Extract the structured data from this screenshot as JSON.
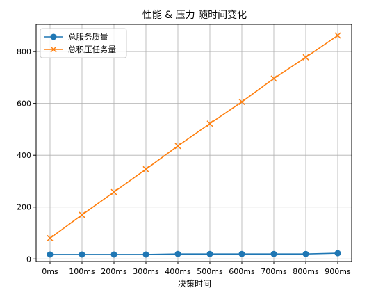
{
  "chart_data": {
    "type": "line",
    "title": "性能 & 压力 随时间变化",
    "xlabel": "决策时间",
    "ylabel": "",
    "categories": [
      "0ms",
      "100ms",
      "200ms",
      "300ms",
      "400ms",
      "500ms",
      "600ms",
      "700ms",
      "800ms",
      "900ms"
    ],
    "ylim": [
      -10,
      905
    ],
    "yticks": [
      0,
      200,
      400,
      600,
      800
    ],
    "grid": true,
    "legend_position": "top-left",
    "series": [
      {
        "name": "总服务质量",
        "marker": "circle",
        "color": "#1f77b4",
        "values": [
          17,
          17,
          17,
          17,
          19,
          19,
          19,
          19,
          19,
          22
        ]
      },
      {
        "name": "总积压任务量",
        "marker": "x",
        "color": "#ff7f0e",
        "values": [
          80,
          170,
          258,
          346,
          436,
          522,
          606,
          696,
          778,
          862
        ]
      }
    ]
  }
}
